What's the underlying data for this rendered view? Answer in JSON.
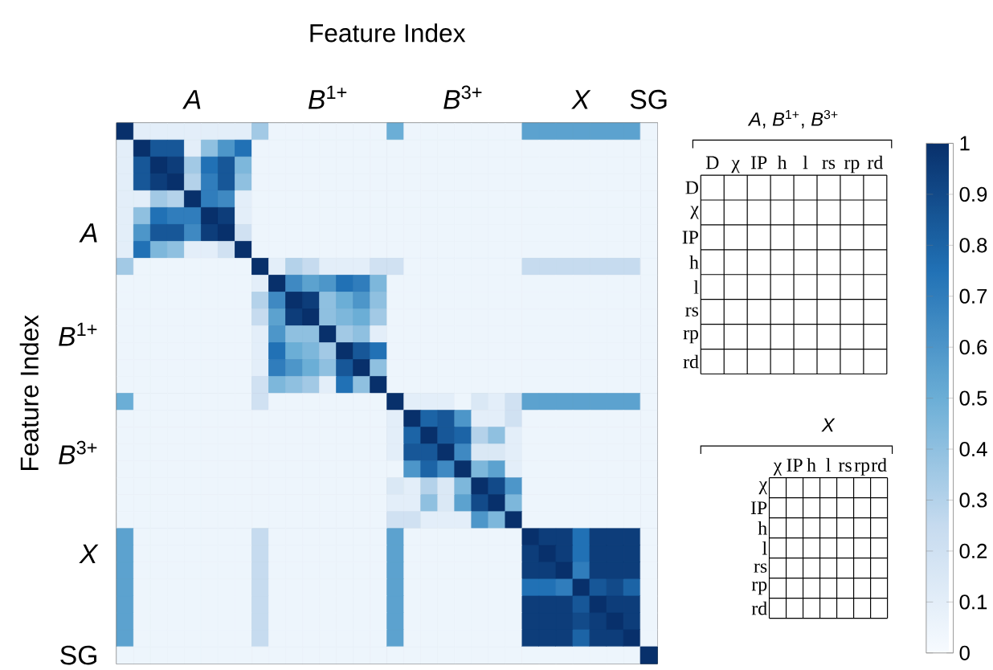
{
  "chart_data": [
    {
      "type": "heatmap",
      "xlabel": "Feature Index",
      "ylabel": "Feature Index",
      "categories": [
        null,
        null,
        null,
        null,
        "*A*",
        null,
        null,
        null,
        null,
        null,
        null,
        null,
        "*B*$^{1+}$",
        null,
        null,
        null,
        null,
        null,
        null,
        null,
        "*B*$^{3+}$",
        null,
        null,
        null,
        null,
        null,
        null,
        "*X*",
        null,
        null,
        null,
        "SG"
      ],
      "y_categories": [
        null,
        null,
        null,
        null,
        null,
        null,
        "*A*",
        null,
        null,
        null,
        null,
        null,
        "*B*$^{1+}$",
        null,
        null,
        null,
        null,
        null,
        null,
        "*B*$^{3+}$",
        null,
        null,
        null,
        null,
        null,
        "*X*",
        null,
        null,
        null,
        null,
        null,
        "SG"
      ],
      "clim": [
        0,
        1
      ],
      "cticks": [
        0,
        0.1,
        0.2,
        0.3,
        0.4,
        0.5,
        0.6,
        0.7,
        0.8,
        0.9,
        1
      ],
      "cells": [
        [
          1,
          0.1,
          0.1,
          0.1,
          0.1,
          0.1,
          0.1,
          0.1,
          0.35,
          0.05,
          0.05,
          0.05,
          0.05,
          0.05,
          0.05,
          0.05,
          0.5,
          0.05,
          0.05,
          0.05,
          0.05,
          0.05,
          0.05,
          0.05,
          0.55,
          0.55,
          0.55,
          0.55,
          0.55,
          0.55,
          0.55,
          0.05
        ],
        [
          0.1,
          1,
          0.85,
          0.85,
          0.1,
          0.4,
          0.6,
          0.75,
          0.05,
          0.05,
          0.05,
          0.05,
          0.05,
          0.05,
          0.05,
          0.05,
          0.05,
          0.05,
          0.05,
          0.05,
          0.05,
          0.05,
          0.05,
          0.05,
          0.05,
          0.05,
          0.05,
          0.05,
          0.05,
          0.05,
          0.05,
          0.05
        ],
        [
          0.1,
          0.85,
          1,
          0.95,
          0.35,
          0.75,
          0.85,
          0.45,
          0.05,
          0.05,
          0.05,
          0.05,
          0.05,
          0.05,
          0.05,
          0.05,
          0.05,
          0.05,
          0.05,
          0.05,
          0.05,
          0.05,
          0.05,
          0.05,
          0.05,
          0.05,
          0.05,
          0.05,
          0.05,
          0.05,
          0.05,
          0.05
        ],
        [
          0.1,
          0.85,
          0.95,
          1,
          0.3,
          0.7,
          0.85,
          0.4,
          0.05,
          0.05,
          0.05,
          0.05,
          0.05,
          0.05,
          0.05,
          0.05,
          0.05,
          0.05,
          0.05,
          0.05,
          0.05,
          0.05,
          0.05,
          0.05,
          0.05,
          0.05,
          0.05,
          0.05,
          0.05,
          0.05,
          0.05,
          0.05
        ],
        [
          0.1,
          0.1,
          0.35,
          0.3,
          1,
          0.7,
          0.65,
          0.1,
          0.05,
          0.05,
          0.05,
          0.05,
          0.05,
          0.05,
          0.05,
          0.05,
          0.05,
          0.05,
          0.05,
          0.05,
          0.05,
          0.05,
          0.05,
          0.05,
          0.05,
          0.05,
          0.05,
          0.05,
          0.05,
          0.05,
          0.05,
          0.05
        ],
        [
          0.1,
          0.4,
          0.75,
          0.7,
          0.7,
          1,
          0.95,
          0.1,
          0.05,
          0.05,
          0.05,
          0.05,
          0.05,
          0.05,
          0.05,
          0.05,
          0.05,
          0.05,
          0.05,
          0.05,
          0.05,
          0.05,
          0.05,
          0.05,
          0.05,
          0.05,
          0.05,
          0.05,
          0.05,
          0.05,
          0.05,
          0.05
        ],
        [
          0.1,
          0.6,
          0.85,
          0.85,
          0.65,
          0.95,
          1,
          0.2,
          0.05,
          0.05,
          0.05,
          0.05,
          0.05,
          0.05,
          0.05,
          0.05,
          0.05,
          0.05,
          0.05,
          0.05,
          0.05,
          0.05,
          0.05,
          0.05,
          0.05,
          0.05,
          0.05,
          0.05,
          0.05,
          0.05,
          0.05,
          0.05
        ],
        [
          0.1,
          0.75,
          0.45,
          0.4,
          0.1,
          0.1,
          0.2,
          1,
          0.05,
          0.05,
          0.05,
          0.05,
          0.05,
          0.05,
          0.05,
          0.05,
          0.05,
          0.05,
          0.05,
          0.05,
          0.05,
          0.05,
          0.05,
          0.05,
          0.05,
          0.05,
          0.05,
          0.05,
          0.05,
          0.05,
          0.05,
          0.05
        ],
        [
          0.35,
          0.05,
          0.05,
          0.05,
          0.05,
          0.05,
          0.05,
          0.05,
          1,
          0.1,
          0.3,
          0.25,
          0.1,
          0.1,
          0.1,
          0.2,
          0.2,
          0.05,
          0.05,
          0.05,
          0.05,
          0.05,
          0.05,
          0.05,
          0.25,
          0.25,
          0.25,
          0.25,
          0.25,
          0.25,
          0.25,
          0.05
        ],
        [
          0.05,
          0.05,
          0.05,
          0.05,
          0.05,
          0.05,
          0.05,
          0.05,
          0.1,
          1,
          0.65,
          0.55,
          0.6,
          0.75,
          0.7,
          0.45,
          0.05,
          0.05,
          0.05,
          0.05,
          0.05,
          0.05,
          0.05,
          0.05,
          0.05,
          0.05,
          0.05,
          0.05,
          0.05,
          0.05,
          0.05,
          0.05
        ],
        [
          0.05,
          0.05,
          0.05,
          0.05,
          0.05,
          0.05,
          0.05,
          0.05,
          0.3,
          0.65,
          1,
          0.95,
          0.4,
          0.5,
          0.6,
          0.4,
          0.05,
          0.05,
          0.05,
          0.05,
          0.05,
          0.05,
          0.05,
          0.05,
          0.05,
          0.05,
          0.05,
          0.05,
          0.05,
          0.05,
          0.05,
          0.05
        ],
        [
          0.05,
          0.05,
          0.05,
          0.05,
          0.05,
          0.05,
          0.05,
          0.05,
          0.25,
          0.55,
          0.95,
          1,
          0.4,
          0.45,
          0.5,
          0.35,
          0.05,
          0.05,
          0.05,
          0.05,
          0.05,
          0.05,
          0.05,
          0.05,
          0.05,
          0.05,
          0.05,
          0.05,
          0.05,
          0.05,
          0.05,
          0.05
        ],
        [
          0.05,
          0.05,
          0.05,
          0.05,
          0.05,
          0.05,
          0.05,
          0.05,
          0.1,
          0.6,
          0.4,
          0.4,
          1,
          0.35,
          0.4,
          0.1,
          0.05,
          0.05,
          0.05,
          0.05,
          0.05,
          0.05,
          0.05,
          0.05,
          0.05,
          0.05,
          0.05,
          0.05,
          0.05,
          0.05,
          0.05,
          0.05
        ],
        [
          0.05,
          0.05,
          0.05,
          0.05,
          0.05,
          0.05,
          0.05,
          0.05,
          0.1,
          0.75,
          0.5,
          0.45,
          0.35,
          1,
          0.85,
          0.75,
          0.05,
          0.05,
          0.05,
          0.05,
          0.05,
          0.05,
          0.05,
          0.05,
          0.05,
          0.05,
          0.05,
          0.05,
          0.05,
          0.05,
          0.05,
          0.05
        ],
        [
          0.05,
          0.05,
          0.05,
          0.05,
          0.05,
          0.05,
          0.05,
          0.05,
          0.1,
          0.7,
          0.6,
          0.5,
          0.4,
          0.85,
          1,
          0.4,
          0.05,
          0.05,
          0.05,
          0.05,
          0.05,
          0.05,
          0.05,
          0.05,
          0.05,
          0.05,
          0.05,
          0.05,
          0.05,
          0.05,
          0.05,
          0.05
        ],
        [
          0.05,
          0.05,
          0.05,
          0.05,
          0.05,
          0.05,
          0.05,
          0.05,
          0.2,
          0.45,
          0.4,
          0.35,
          0.1,
          0.75,
          0.4,
          1,
          0.05,
          0.05,
          0.05,
          0.05,
          0.05,
          0.05,
          0.05,
          0.05,
          0.05,
          0.05,
          0.05,
          0.05,
          0.05,
          0.05,
          0.05,
          0.05
        ],
        [
          0.5,
          0.05,
          0.05,
          0.05,
          0.05,
          0.05,
          0.05,
          0.05,
          0.2,
          0.05,
          0.05,
          0.05,
          0.05,
          0.05,
          0.05,
          0.05,
          1,
          0.1,
          0.1,
          0.1,
          0.05,
          0.15,
          0.1,
          0.2,
          0.55,
          0.55,
          0.55,
          0.55,
          0.55,
          0.55,
          0.55,
          0.05
        ],
        [
          0.05,
          0.05,
          0.05,
          0.05,
          0.05,
          0.05,
          0.05,
          0.05,
          0.05,
          0.05,
          0.05,
          0.05,
          0.05,
          0.05,
          0.05,
          0.05,
          0.1,
          1,
          0.8,
          0.85,
          0.6,
          0.1,
          0.1,
          0.2,
          0.05,
          0.05,
          0.05,
          0.05,
          0.05,
          0.05,
          0.05,
          0.05
        ],
        [
          0.05,
          0.05,
          0.05,
          0.05,
          0.05,
          0.05,
          0.05,
          0.05,
          0.05,
          0.05,
          0.05,
          0.05,
          0.05,
          0.05,
          0.05,
          0.05,
          0.1,
          0.8,
          1,
          0.85,
          0.8,
          0.3,
          0.4,
          0.1,
          0.05,
          0.05,
          0.05,
          0.05,
          0.05,
          0.05,
          0.05,
          0.05
        ],
        [
          0.05,
          0.05,
          0.05,
          0.05,
          0.05,
          0.05,
          0.05,
          0.05,
          0.05,
          0.05,
          0.05,
          0.05,
          0.05,
          0.05,
          0.05,
          0.05,
          0.1,
          0.85,
          0.85,
          1,
          0.65,
          0.15,
          0.15,
          0.1,
          0.05,
          0.05,
          0.05,
          0.05,
          0.05,
          0.05,
          0.05,
          0.05
        ],
        [
          0.05,
          0.05,
          0.05,
          0.05,
          0.05,
          0.05,
          0.05,
          0.05,
          0.05,
          0.05,
          0.05,
          0.05,
          0.05,
          0.05,
          0.05,
          0.05,
          0.05,
          0.6,
          0.8,
          0.65,
          1,
          0.45,
          0.55,
          0.1,
          0.05,
          0.05,
          0.05,
          0.05,
          0.05,
          0.05,
          0.05,
          0.05
        ],
        [
          0.05,
          0.05,
          0.05,
          0.05,
          0.05,
          0.05,
          0.05,
          0.05,
          0.05,
          0.05,
          0.05,
          0.05,
          0.05,
          0.05,
          0.05,
          0.05,
          0.15,
          0.1,
          0.3,
          0.15,
          0.45,
          1,
          0.9,
          0.6,
          0.05,
          0.05,
          0.05,
          0.05,
          0.05,
          0.05,
          0.05,
          0.05
        ],
        [
          0.05,
          0.05,
          0.05,
          0.05,
          0.05,
          0.05,
          0.05,
          0.05,
          0.05,
          0.05,
          0.05,
          0.05,
          0.05,
          0.05,
          0.05,
          0.05,
          0.1,
          0.1,
          0.4,
          0.15,
          0.55,
          0.9,
          1,
          0.45,
          0.05,
          0.05,
          0.05,
          0.05,
          0.05,
          0.05,
          0.05,
          0.05
        ],
        [
          0.05,
          0.05,
          0.05,
          0.05,
          0.05,
          0.05,
          0.05,
          0.05,
          0.05,
          0.05,
          0.05,
          0.05,
          0.05,
          0.05,
          0.05,
          0.05,
          0.2,
          0.2,
          0.1,
          0.1,
          0.1,
          0.6,
          0.45,
          1,
          0.05,
          0.05,
          0.05,
          0.05,
          0.05,
          0.05,
          0.05,
          0.05
        ],
        [
          0.55,
          0.05,
          0.05,
          0.05,
          0.05,
          0.05,
          0.05,
          0.05,
          0.25,
          0.05,
          0.05,
          0.05,
          0.05,
          0.05,
          0.05,
          0.05,
          0.55,
          0.05,
          0.05,
          0.05,
          0.05,
          0.05,
          0.05,
          0.05,
          1,
          0.95,
          0.95,
          0.75,
          0.95,
          0.95,
          0.95,
          0.05
        ],
        [
          0.55,
          0.05,
          0.05,
          0.05,
          0.05,
          0.05,
          0.05,
          0.05,
          0.25,
          0.05,
          0.05,
          0.05,
          0.05,
          0.05,
          0.05,
          0.05,
          0.55,
          0.05,
          0.05,
          0.05,
          0.05,
          0.05,
          0.05,
          0.05,
          0.95,
          1,
          0.95,
          0.75,
          0.95,
          0.95,
          0.95,
          0.05
        ],
        [
          0.55,
          0.05,
          0.05,
          0.05,
          0.05,
          0.05,
          0.05,
          0.05,
          0.25,
          0.05,
          0.05,
          0.05,
          0.05,
          0.05,
          0.05,
          0.05,
          0.55,
          0.05,
          0.05,
          0.05,
          0.05,
          0.05,
          0.05,
          0.05,
          0.95,
          0.95,
          1,
          0.7,
          0.95,
          0.95,
          0.95,
          0.05
        ],
        [
          0.55,
          0.05,
          0.05,
          0.05,
          0.05,
          0.05,
          0.05,
          0.05,
          0.25,
          0.05,
          0.05,
          0.05,
          0.05,
          0.05,
          0.05,
          0.05,
          0.55,
          0.05,
          0.05,
          0.05,
          0.05,
          0.05,
          0.05,
          0.05,
          0.75,
          0.75,
          0.7,
          1,
          0.85,
          0.9,
          0.8,
          0.05
        ],
        [
          0.55,
          0.05,
          0.05,
          0.05,
          0.05,
          0.05,
          0.05,
          0.05,
          0.25,
          0.05,
          0.05,
          0.05,
          0.05,
          0.05,
          0.05,
          0.05,
          0.55,
          0.05,
          0.05,
          0.05,
          0.05,
          0.05,
          0.05,
          0.05,
          0.95,
          0.95,
          0.95,
          0.85,
          1,
          0.95,
          0.95,
          0.05
        ],
        [
          0.55,
          0.05,
          0.05,
          0.05,
          0.05,
          0.05,
          0.05,
          0.05,
          0.25,
          0.05,
          0.05,
          0.05,
          0.05,
          0.05,
          0.05,
          0.05,
          0.55,
          0.05,
          0.05,
          0.05,
          0.05,
          0.05,
          0.05,
          0.05,
          0.95,
          0.95,
          0.95,
          0.9,
          0.95,
          1,
          0.95,
          0.05
        ],
        [
          0.55,
          0.05,
          0.05,
          0.05,
          0.05,
          0.05,
          0.05,
          0.05,
          0.25,
          0.05,
          0.05,
          0.05,
          0.05,
          0.05,
          0.05,
          0.05,
          0.55,
          0.05,
          0.05,
          0.05,
          0.05,
          0.05,
          0.05,
          0.05,
          0.95,
          0.95,
          0.95,
          0.8,
          0.95,
          0.95,
          1,
          0.05
        ],
        [
          0.05,
          0.05,
          0.05,
          0.05,
          0.05,
          0.05,
          0.05,
          0.05,
          0.05,
          0.05,
          0.05,
          0.05,
          0.05,
          0.05,
          0.05,
          0.05,
          0.05,
          0.05,
          0.05,
          0.05,
          0.05,
          0.05,
          0.05,
          0.05,
          0.05,
          0.05,
          0.05,
          0.05,
          0.05,
          0.05,
          0.05,
          1
        ]
      ]
    },
    {
      "type": "other",
      "title": "*A*, *B*$^{1+}$, *B*$^{3+}$",
      "categories": [
        "D",
        "χ",
        "IP",
        "h",
        "l",
        "rs",
        "rp",
        "rd"
      ],
      "y_categories": [
        "D",
        "χ",
        "IP",
        "h",
        "l",
        "rs",
        "rp",
        "rd"
      ]
    },
    {
      "type": "other",
      "title": "*X*",
      "categories": [
        "χ",
        "IP",
        "h",
        "l",
        "rs",
        "rp",
        "rd"
      ],
      "y_categories": [
        "χ",
        "IP",
        "h",
        "l",
        "rs",
        "rp",
        "rd"
      ]
    }
  ]
}
